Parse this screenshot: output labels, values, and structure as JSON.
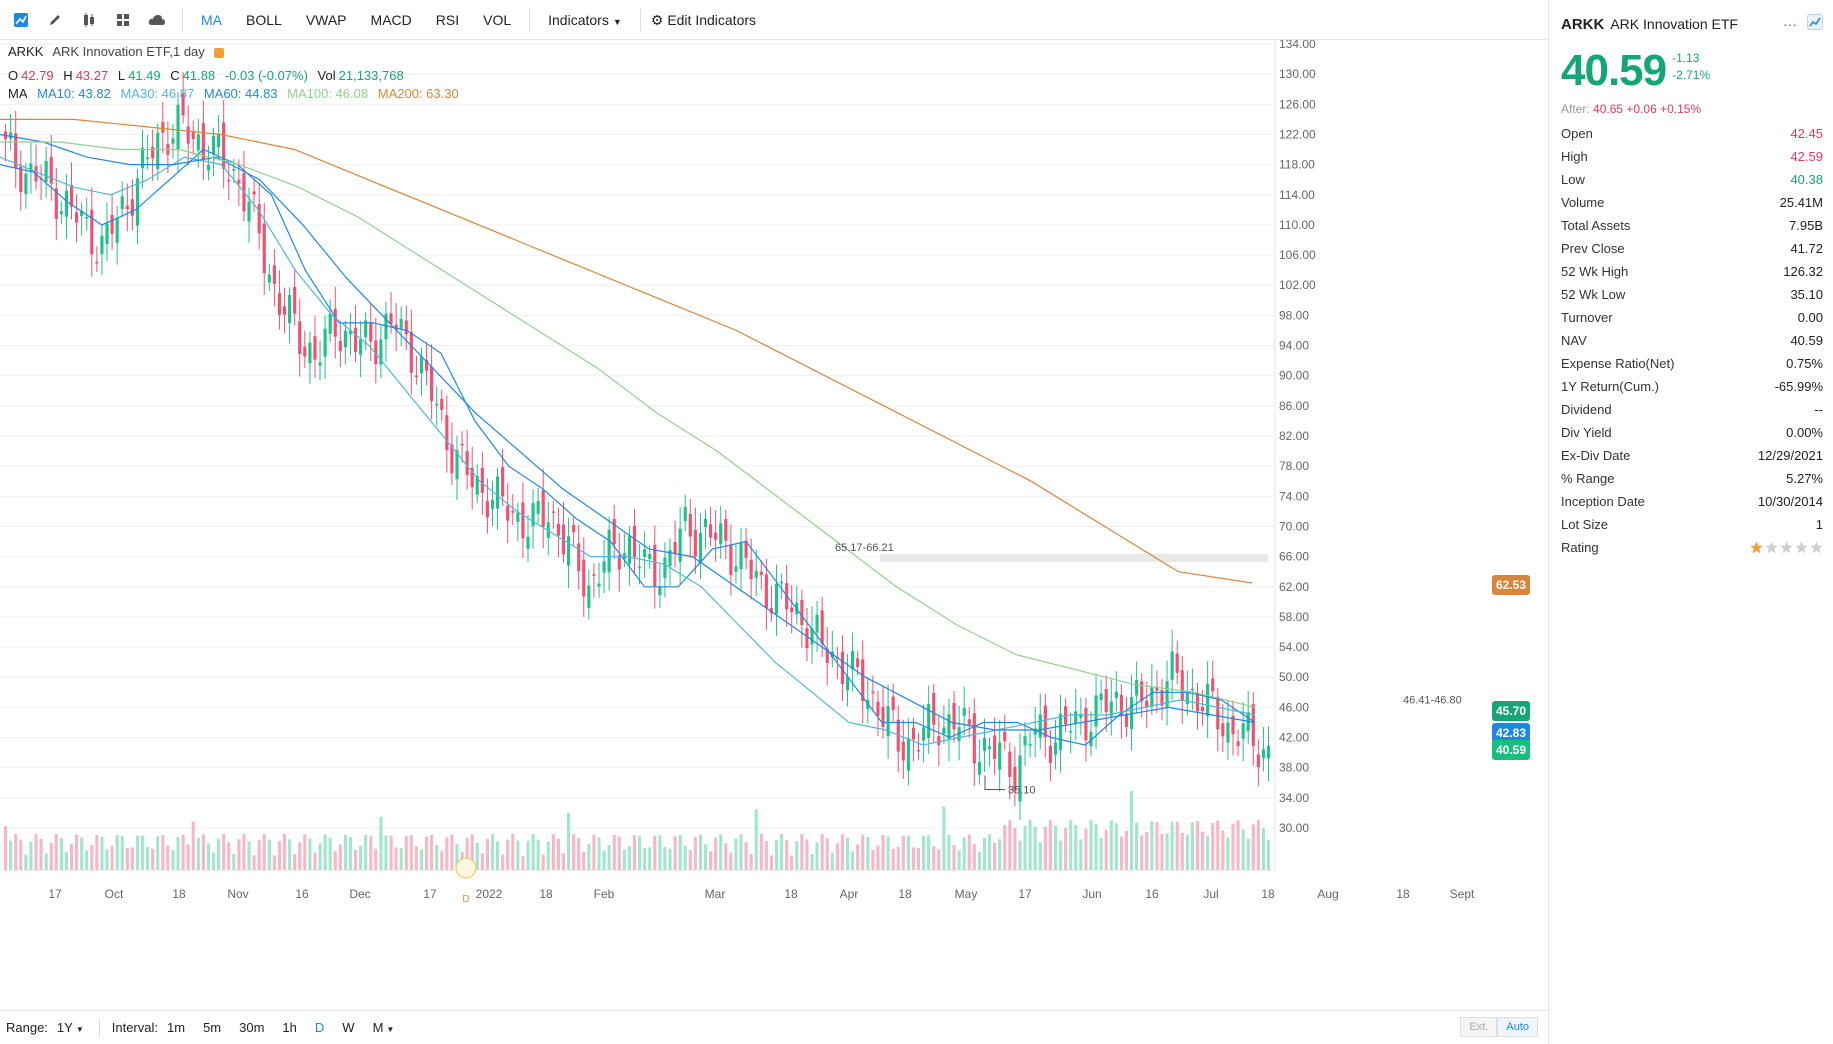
{
  "toolbar": {
    "icons": [
      "chart-line-icon",
      "pencil-icon",
      "candlestick-icon",
      "grid-icon",
      "cloud-icon"
    ],
    "items": [
      "MA",
      "BOLL",
      "VWAP",
      "MACD",
      "RSI",
      "VOL"
    ],
    "active_item": "MA",
    "indicators_label": "Indicators",
    "edit_indicators_label": "Edit Indicators"
  },
  "legend": {
    "symbol": "ARKK",
    "title": "ARK Innovation ETF,1 day",
    "ohlc": {
      "o_label": "O",
      "o": "42.79",
      "h_label": "H",
      "h": "43.27",
      "l_label": "L",
      "l": "41.49",
      "c_label": "C",
      "c": "41.88",
      "chg": "-0.03 (-0.07%)",
      "vol_label": "Vol",
      "vol": "21,133,768"
    },
    "ma_label": "MA",
    "ma": [
      {
        "label": "MA10: 43.82",
        "color": "#1e88e5"
      },
      {
        "label": "MA30: 46.87",
        "color": "#4fb8d8"
      },
      {
        "label": "MA60: 44.83",
        "color": "#1e88e5"
      },
      {
        "label": "MA100: 46.08",
        "color": "#8fd18f"
      },
      {
        "label": "MA200: 63.30",
        "color": "#d9863a"
      }
    ]
  },
  "chart_data": {
    "type": "candlestick",
    "y_ticks": [
      "134.00",
      "130.00",
      "126.00",
      "122.00",
      "118.00",
      "114.00",
      "110.00",
      "106.00",
      "102.00",
      "98.00",
      "94.00",
      "90.00",
      "86.00",
      "82.00",
      "78.00",
      "74.00",
      "70.00",
      "66.00",
      "62.00",
      "58.00",
      "54.00",
      "50.00",
      "46.00",
      "42.00",
      "38.00",
      "34.00",
      "30.00"
    ],
    "x_ticks": [
      "17",
      "Oct",
      "18",
      "Nov",
      "16",
      "Dec",
      "17",
      "2022",
      "18",
      "Feb",
      "Mar",
      "18",
      "Apr",
      "18",
      "May",
      "17",
      "Jun",
      "16",
      "Jul",
      "18",
      "Aug",
      "18",
      "Sept"
    ],
    "ylim": [
      30,
      134
    ],
    "annotations": {
      "high_mark": "65.17-66.21",
      "low_mark": "35.10",
      "range_mark": "46.41-46.80",
      "dividend_marker": "D"
    },
    "price_badges": [
      {
        "value": "62.53",
        "color": "#d9863a"
      },
      {
        "value": "45.70",
        "color": "#15a676"
      },
      {
        "value": "42.83",
        "color": "#1e88e5"
      },
      {
        "value": "40.59",
        "color": "#15c07d"
      }
    ],
    "close_path_anchor_values": [
      120,
      117,
      116,
      113,
      110,
      107,
      112,
      117,
      122,
      123,
      121,
      119,
      116,
      109,
      100,
      96,
      92,
      97,
      94,
      95,
      97,
      93,
      87,
      80,
      76,
      74,
      72,
      70,
      72,
      67,
      62,
      66,
      68,
      64,
      65,
      70,
      69,
      68,
      65,
      62,
      60,
      58,
      54,
      52,
      49,
      46,
      41,
      42,
      44,
      44,
      41,
      40,
      38,
      43,
      42,
      44,
      45,
      47,
      46,
      48,
      50,
      48,
      46,
      43,
      42,
      40
    ],
    "ma_series": [
      {
        "name": "MA10",
        "color": "#1e88e5",
        "values": [
          118,
          117,
          113,
          110,
          112,
          116,
          120,
          118,
          114,
          104,
          97,
          97,
          96,
          93,
          84,
          78,
          75,
          71,
          68,
          62,
          62,
          67,
          68,
          62,
          56,
          50,
          44,
          44,
          42,
          44,
          44,
          42,
          41,
          45,
          48,
          48,
          47,
          44
        ]
      },
      {
        "name": "MA30",
        "color": "#4fb8d8",
        "values": [
          119,
          117,
          115,
          114,
          116,
          119,
          118,
          112,
          104,
          98,
          94,
          88,
          82,
          76,
          72,
          69,
          66,
          66,
          65,
          62,
          57,
          52,
          48,
          44,
          43,
          41,
          42,
          43,
          44,
          45,
          45,
          46,
          47,
          46,
          45
        ]
      },
      {
        "name": "MA60",
        "color": "#1e88e5",
        "values": [
          122,
          121,
          119,
          118,
          118,
          119,
          116,
          110,
          103,
          97,
          91,
          85,
          80,
          75,
          71,
          67,
          66,
          62,
          58,
          54,
          50,
          47,
          44,
          43,
          43,
          44,
          45,
          46,
          45,
          44
        ]
      },
      {
        "name": "MA100",
        "color": "#8fd18f",
        "values": [
          121,
          121,
          120,
          120,
          118,
          115,
          111,
          106,
          101,
          96,
          91,
          85,
          80,
          74,
          68,
          62,
          57,
          53,
          51,
          49,
          48,
          46
        ]
      },
      {
        "name": "MA200",
        "color": "#d9863a",
        "values": [
          124,
          124,
          123,
          122,
          120,
          116,
          112,
          108,
          104,
          100,
          96,
          91,
          86,
          81,
          76,
          70,
          64,
          62.5
        ]
      }
    ]
  },
  "bottombar": {
    "range_label": "Range:",
    "range_value": "1Y",
    "interval_label": "Interval:",
    "intervals": [
      "1m",
      "5m",
      "30m",
      "1h",
      "D",
      "W",
      "M"
    ],
    "active_interval": "D",
    "ext_label": "Ext.",
    "auto_label": "Auto"
  },
  "side": {
    "symbol": "ARKK",
    "name": "ARK Innovation ETF",
    "menu": "···",
    "price": "40.59",
    "change": "-1.13",
    "change_pct": "-2.71%",
    "after_label": "After:",
    "after_value": "40.65 +0.06 +0.15%",
    "stats": [
      {
        "label": "Open",
        "value": "42.45",
        "tone": "red"
      },
      {
        "label": "High",
        "value": "42.59",
        "tone": "red"
      },
      {
        "label": "Low",
        "value": "40.38",
        "tone": "green"
      },
      {
        "label": "Volume",
        "value": "25.41M",
        "tone": ""
      },
      {
        "label": "Total Assets",
        "value": "7.95B",
        "tone": ""
      },
      {
        "label": "Prev Close",
        "value": "41.72",
        "tone": ""
      },
      {
        "label": "52 Wk High",
        "value": "126.32",
        "tone": ""
      },
      {
        "label": "52 Wk Low",
        "value": "35.10",
        "tone": ""
      },
      {
        "label": "Turnover",
        "value": "0.00",
        "tone": ""
      },
      {
        "label": "NAV",
        "value": "40.59",
        "tone": ""
      },
      {
        "label": "Expense Ratio(Net)",
        "value": "0.75%",
        "tone": ""
      },
      {
        "label": "1Y Return(Cum.)",
        "value": "-65.99%",
        "tone": ""
      },
      {
        "label": "Dividend",
        "value": "--",
        "tone": ""
      },
      {
        "label": "Div Yield",
        "value": "0.00%",
        "tone": ""
      },
      {
        "label": "Ex-Div Date",
        "value": "12/29/2021",
        "tone": ""
      },
      {
        "label": "% Range",
        "value": "5.27%",
        "tone": ""
      },
      {
        "label": "Inception Date",
        "value": "10/30/2014",
        "tone": ""
      },
      {
        "label": "Lot Size",
        "value": "1",
        "tone": ""
      }
    ],
    "rating_label": "Rating",
    "rating_stars": 1,
    "rating_max": 5
  }
}
